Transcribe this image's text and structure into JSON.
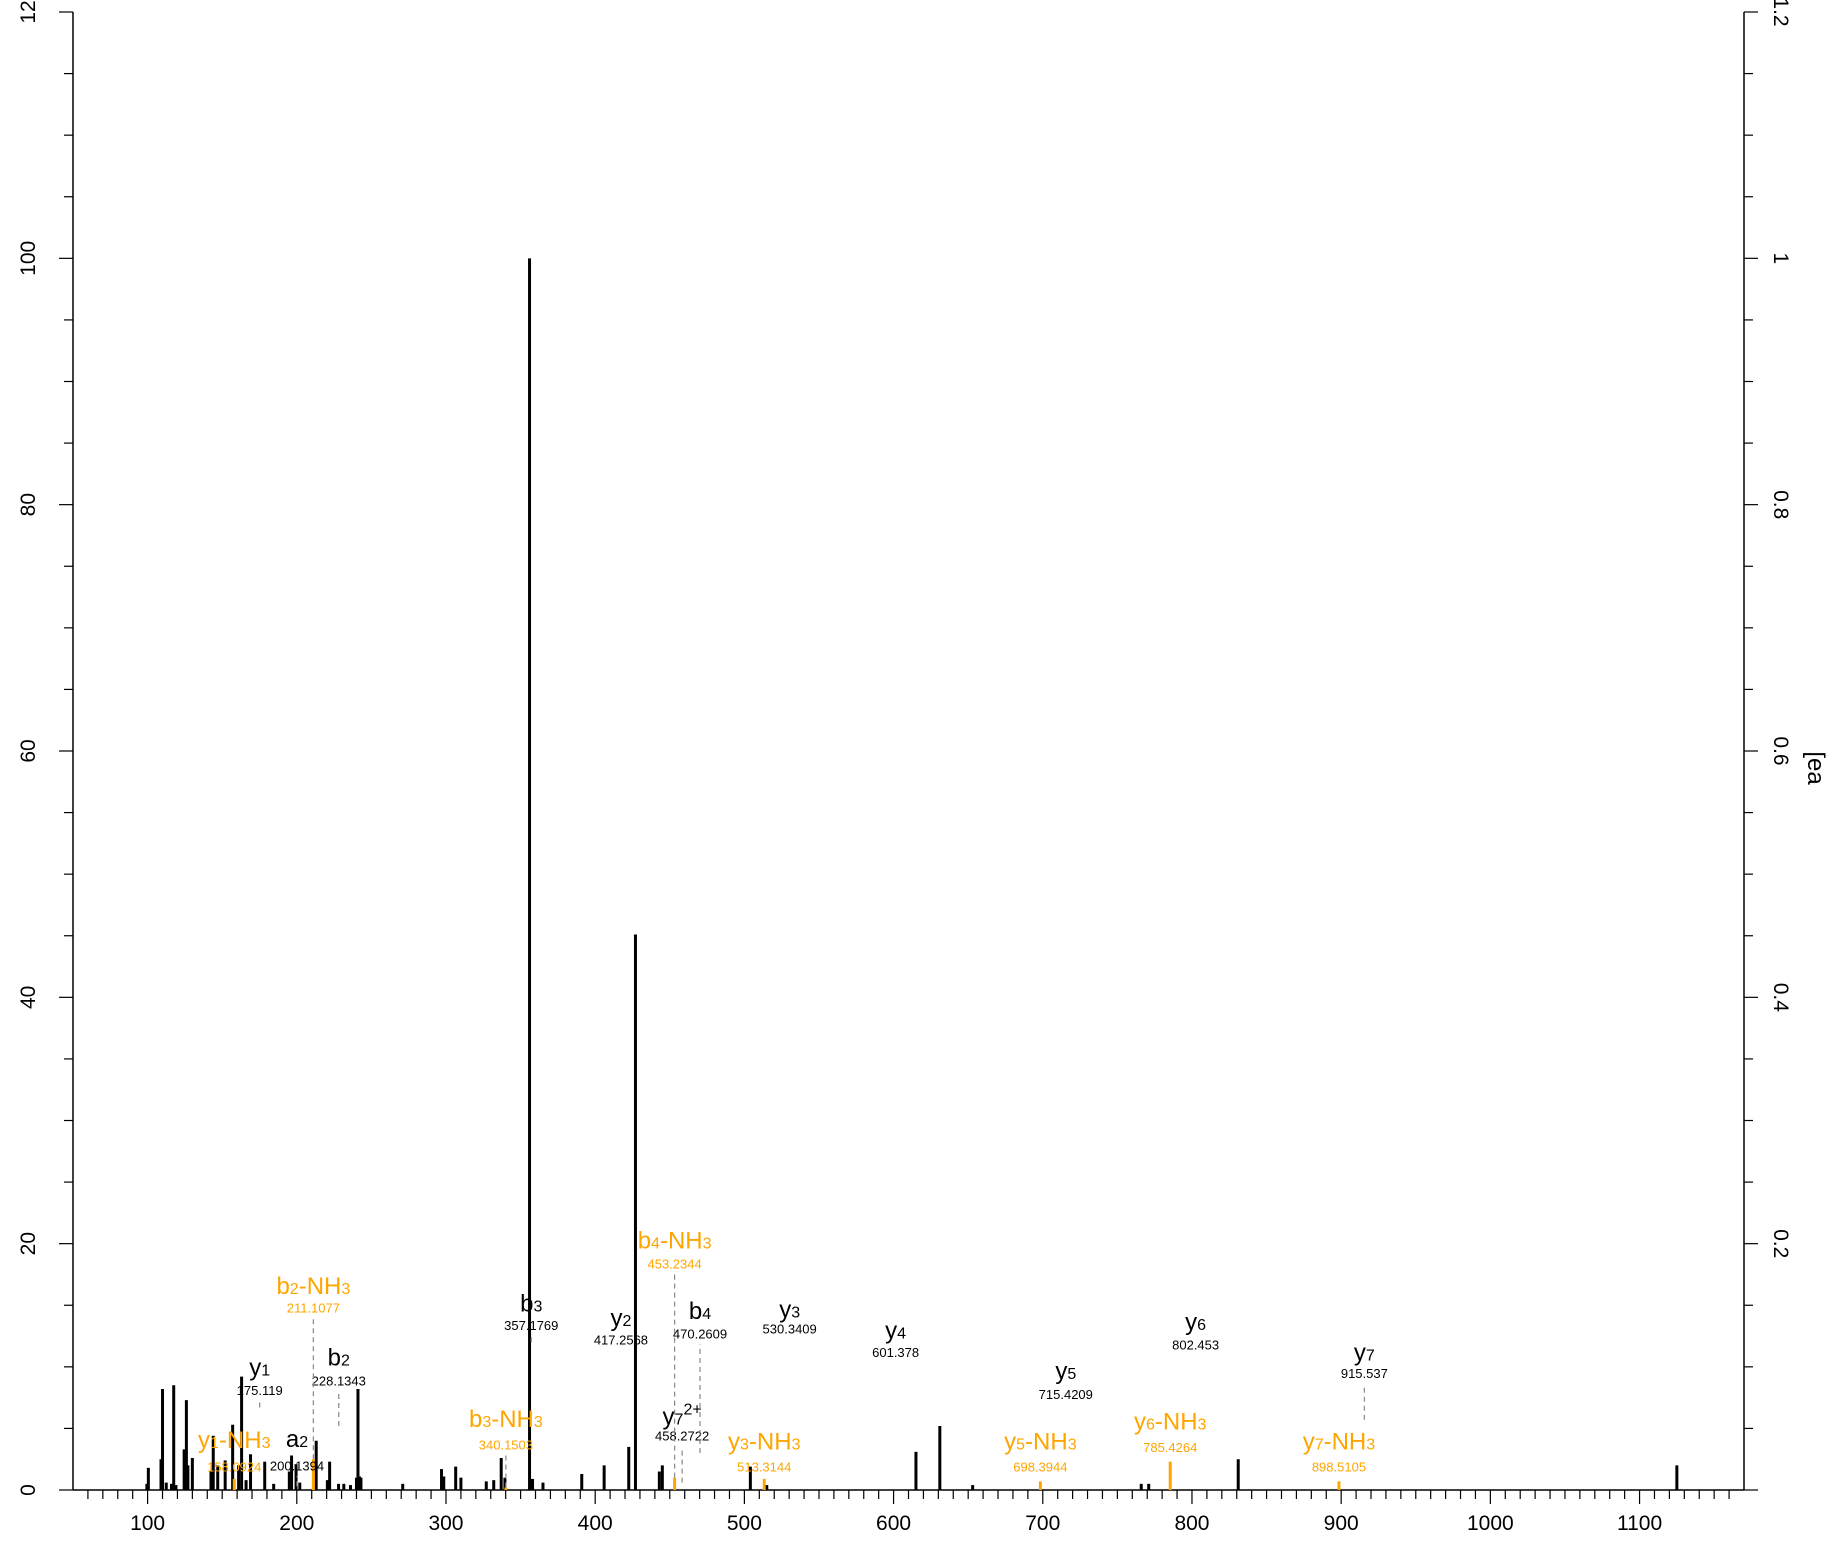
{
  "chart_data": {
    "type": "bar",
    "title": "",
    "xlabel": "",
    "ylabel": "",
    "ylabel_right": "[ea",
    "xlim": [
      50,
      1170
    ],
    "ylim": [
      0,
      120
    ],
    "ylim_right": [
      0,
      1.2
    ],
    "x_ticks": [
      100,
      200,
      300,
      400,
      500,
      600,
      700,
      800,
      900,
      1000,
      1100
    ],
    "y_ticks": [
      0,
      20,
      40,
      60,
      80,
      100,
      120
    ],
    "y_right_ticks": [
      0.2,
      0.4,
      0.6,
      0.8,
      1,
      1.2
    ],
    "y_left_top_partial": "12",
    "grid": false,
    "colors": {
      "unassigned": "#000000",
      "y_ion": "#ee1111",
      "b_ion": "#1111dd",
      "a_ion": "#87ceeb",
      "neutral_loss": "#ffa500",
      "connector": "#888888"
    },
    "unassigned_peaks": [
      [
        99.5,
        0.5
      ],
      [
        100.5,
        1.8
      ],
      [
        109,
        2.5
      ],
      [
        110,
        8.2
      ],
      [
        112.5,
        0.6
      ],
      [
        116,
        0.5
      ],
      [
        117.5,
        8.5
      ],
      [
        119,
        0.4
      ],
      [
        124.5,
        3.3
      ],
      [
        126,
        7.3
      ],
      [
        127,
        2.0
      ],
      [
        130,
        2.6
      ],
      [
        142.5,
        1.5
      ],
      [
        144,
        4.4
      ],
      [
        147,
        2.0
      ],
      [
        152,
        2.4
      ],
      [
        157,
        5.3
      ],
      [
        161,
        2.0
      ],
      [
        163,
        9.2
      ],
      [
        166,
        0.8
      ],
      [
        169,
        2.9
      ],
      [
        178.5,
        2.3
      ],
      [
        184.5,
        0.5
      ],
      [
        195,
        1.5
      ],
      [
        196.5,
        2.8
      ],
      [
        199.5,
        2.1
      ],
      [
        202,
        0.6
      ],
      [
        213,
        4.0
      ],
      [
        220.5,
        0.8
      ],
      [
        222,
        2.3
      ],
      [
        228,
        0.5
      ],
      [
        231.5,
        0.5
      ],
      [
        236,
        0.4
      ],
      [
        240,
        1.0
      ],
      [
        241,
        8.2
      ],
      [
        242,
        1.1
      ],
      [
        243,
        1.0
      ],
      [
        271,
        0.5
      ],
      [
        297,
        1.7
      ],
      [
        298.5,
        1.1
      ],
      [
        306.5,
        1.9
      ],
      [
        310,
        1.0
      ],
      [
        327,
        0.7
      ],
      [
        332,
        0.8
      ],
      [
        337,
        2.6
      ],
      [
        339.5,
        1.0
      ],
      [
        356,
        100.0
      ],
      [
        358,
        0.9
      ],
      [
        365,
        0.6
      ],
      [
        391,
        1.3
      ],
      [
        406,
        2.0
      ],
      [
        422.5,
        3.5
      ],
      [
        427,
        45.1
      ],
      [
        443,
        1.5
      ],
      [
        445,
        2.0
      ],
      [
        504,
        1.9
      ],
      [
        515,
        0.4
      ],
      [
        615,
        3.1
      ],
      [
        631,
        5.2
      ],
      [
        653,
        0.4
      ],
      [
        766,
        0.5
      ],
      [
        771,
        0.5
      ],
      [
        831,
        2.5
      ],
      [
        1125,
        2.0
      ]
    ],
    "annotated_peaks": [
      {
        "label": "y",
        "sub": "1",
        "sup": "",
        "mz_text": "175.119",
        "mz": 175.119,
        "intensity": 6.7,
        "ion": "y",
        "label_y": 9.3,
        "mz_y": 7.7
      },
      {
        "label": "y",
        "sub": "2",
        "sup": "",
        "mz_text": "417.2568",
        "mz": 417.2568,
        "intensity": 11.3,
        "ion": "y",
        "label_y": 13.3,
        "mz_y": 11.8
      },
      {
        "label": "y",
        "sub": "3",
        "sup": "",
        "mz_text": "530.3409",
        "mz": 530.3409,
        "intensity": 12.1,
        "ion": "y",
        "label_y": 14.0,
        "mz_y": 12.7
      },
      {
        "label": "y",
        "sub": "4",
        "sup": "",
        "mz_text": "601.378",
        "mz": 601.378,
        "intensity": 10.2,
        "ion": "y",
        "label_y": 12.3,
        "mz_y": 10.8
      },
      {
        "label": "y",
        "sub": "5",
        "sup": "",
        "mz_text": "715.4209",
        "mz": 715.4209,
        "intensity": 6.8,
        "ion": "y",
        "label_y": 9.0,
        "mz_y": 7.4
      },
      {
        "label": "y",
        "sub": "6",
        "sup": "",
        "mz_text": "802.453",
        "mz": 802.453,
        "intensity": 10.8,
        "ion": "y",
        "label_y": 13.0,
        "mz_y": 11.4
      },
      {
        "label": "y",
        "sub": "7",
        "sup": "",
        "mz_text": "915.537",
        "mz": 915.537,
        "intensity": 5.7,
        "ion": "y",
        "label_y": 10.5,
        "mz_y": 9.1
      },
      {
        "label": "y",
        "sub": "7",
        "sup": "2+",
        "mz_text": "458.2722",
        "mz": 458.2722,
        "intensity": 0.6,
        "ion": "y",
        "label_y": 5.3,
        "mz_y": 4.0
      },
      {
        "label": "b",
        "sub": "2",
        "sup": "",
        "mz_text": "228.1343",
        "mz": 228.1343,
        "intensity": 5.2,
        "ion": "b",
        "label_y": 10.1,
        "mz_y": 8.5
      },
      {
        "label": "b",
        "sub": "3",
        "sup": "",
        "mz_text": "357.1769",
        "mz": 357.1769,
        "intensity": 12.0,
        "ion": "b",
        "label_y": 14.5,
        "mz_y": 13.0
      },
      {
        "label": "b",
        "sub": "4",
        "sup": "",
        "mz_text": "470.2609",
        "mz": 470.2609,
        "intensity": 3.0,
        "ion": "b",
        "label_y": 13.9,
        "mz_y": 12.3
      },
      {
        "label": "a",
        "sub": "2",
        "sup": "",
        "mz_text": "200.1394",
        "mz": 200.1394,
        "intensity": 0.3,
        "ion": "a",
        "label_y": 3.5,
        "mz_y": 1.6
      },
      {
        "label": "b",
        "sub": "2",
        "sup": "",
        "suffix": "-NH",
        "suffix_sub": "3",
        "mz_text": "211.1077",
        "mz": 211.1077,
        "intensity": 2.5,
        "ion": "neutral_loss",
        "label_y": 15.9,
        "mz_y": 14.4
      },
      {
        "label": "b",
        "sub": "3",
        "sup": "",
        "suffix": "-NH",
        "suffix_sub": "3",
        "mz_text": "340.1503",
        "mz": 340.1503,
        "intensity": 0.2,
        "ion": "neutral_loss",
        "label_y": 5.1,
        "mz_y": 3.3
      },
      {
        "label": "b",
        "sub": "4",
        "sup": "",
        "suffix": "-NH",
        "suffix_sub": "3",
        "mz_text": "453.2344",
        "mz": 453.2344,
        "intensity": 1.0,
        "ion": "neutral_loss",
        "label_y": 19.6,
        "mz_y": 18.0
      },
      {
        "label": "y",
        "sub": "1",
        "sup": "",
        "suffix": "-NH",
        "suffix_sub": "3",
        "mz_text": "158.0924",
        "mz": 158.0924,
        "intensity": 0.9,
        "ion": "neutral_loss",
        "label_y": 3.4,
        "mz_y": 1.5
      },
      {
        "label": "y",
        "sub": "3",
        "sup": "",
        "suffix": "-NH",
        "suffix_sub": "3",
        "mz_text": "513.3144",
        "mz": 513.3144,
        "intensity": 0.9,
        "ion": "neutral_loss",
        "label_y": 3.3,
        "mz_y": 1.5
      },
      {
        "label": "y",
        "sub": "5",
        "sup": "",
        "suffix": "-NH",
        "suffix_sub": "3",
        "mz_text": "698.3944",
        "mz": 698.3944,
        "intensity": 0.7,
        "ion": "neutral_loss",
        "label_y": 3.3,
        "mz_y": 1.5
      },
      {
        "label": "y",
        "sub": "6",
        "sup": "",
        "suffix": "-NH",
        "suffix_sub": "3",
        "mz_text": "785.4264",
        "mz": 785.4264,
        "intensity": 2.3,
        "ion": "neutral_loss",
        "label_y": 4.9,
        "mz_y": 3.1
      },
      {
        "label": "y",
        "sub": "7",
        "sup": "",
        "suffix": "-NH",
        "suffix_sub": "3",
        "mz_text": "898.5105",
        "mz": 898.5105,
        "intensity": 0.7,
        "ion": "neutral_loss",
        "label_y": 3.3,
        "mz_y": 1.5
      }
    ]
  }
}
